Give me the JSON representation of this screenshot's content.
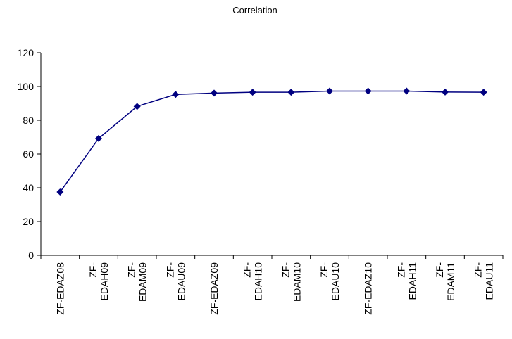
{
  "chart_data": {
    "type": "line",
    "title": "Correlation",
    "xlabel": "",
    "ylabel": "",
    "ylim": [
      0,
      120
    ],
    "yticks": [
      0,
      20,
      40,
      60,
      80,
      100,
      120
    ],
    "grid": false,
    "legend": "none",
    "categories": [
      [
        "ZF-EDAZ08"
      ],
      [
        "ZF-",
        "EDAH09"
      ],
      [
        "ZF-",
        "EDAM09"
      ],
      [
        "ZF-",
        "EDAU09"
      ],
      [
        "ZF-EDAZ09"
      ],
      [
        "ZF-",
        "EDAH10"
      ],
      [
        "ZF-",
        "EDAM10"
      ],
      [
        "ZF-",
        "EDAU10"
      ],
      [
        "ZF-EDAZ10"
      ],
      [
        "ZF-",
        "EDAH11"
      ],
      [
        "ZF-",
        "EDAM11"
      ],
      [
        "ZF-",
        "EDAU11"
      ]
    ],
    "series": [
      {
        "values": [
          37.5,
          69.2,
          88.2,
          95.3,
          96.1,
          96.6,
          96.6,
          97.3,
          97.3,
          97.3,
          96.7,
          96.6
        ],
        "color": "#000080",
        "marker": "diamond"
      }
    ]
  }
}
